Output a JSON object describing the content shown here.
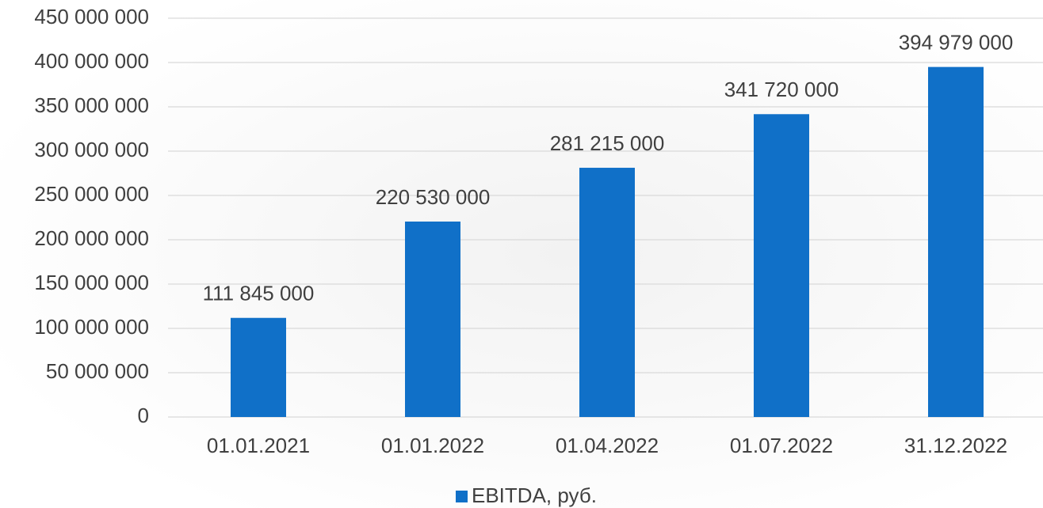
{
  "chart_data": {
    "type": "bar",
    "categories": [
      "01.01.2021",
      "01.01.2022",
      "01.04.2022",
      "01.07.2022",
      "31.12.2022"
    ],
    "series": [
      {
        "name": "EBITDA, руб.",
        "color": "#1070c8",
        "values": [
          111845000,
          220530000,
          281215000,
          341720000,
          394979000
        ],
        "value_labels": [
          "111 845 000",
          "220 530 000",
          "281 215 000",
          "341 720 000",
          "394 979 000"
        ]
      }
    ],
    "ylim": [
      0,
      450000000
    ],
    "yticks": [
      {
        "value": 0,
        "label": "0"
      },
      {
        "value": 50000000,
        "label": "50 000 000"
      },
      {
        "value": 100000000,
        "label": "100 000 000"
      },
      {
        "value": 150000000,
        "label": "150 000 000"
      },
      {
        "value": 200000000,
        "label": "200 000 000"
      },
      {
        "value": 250000000,
        "label": "250 000 000"
      },
      {
        "value": 300000000,
        "label": "300 000 000"
      },
      {
        "value": 350000000,
        "label": "350 000 000"
      },
      {
        "value": 400000000,
        "label": "400 000 000"
      },
      {
        "value": 450000000,
        "label": "450 000 000"
      }
    ],
    "grid": true,
    "legend": "bottom"
  }
}
